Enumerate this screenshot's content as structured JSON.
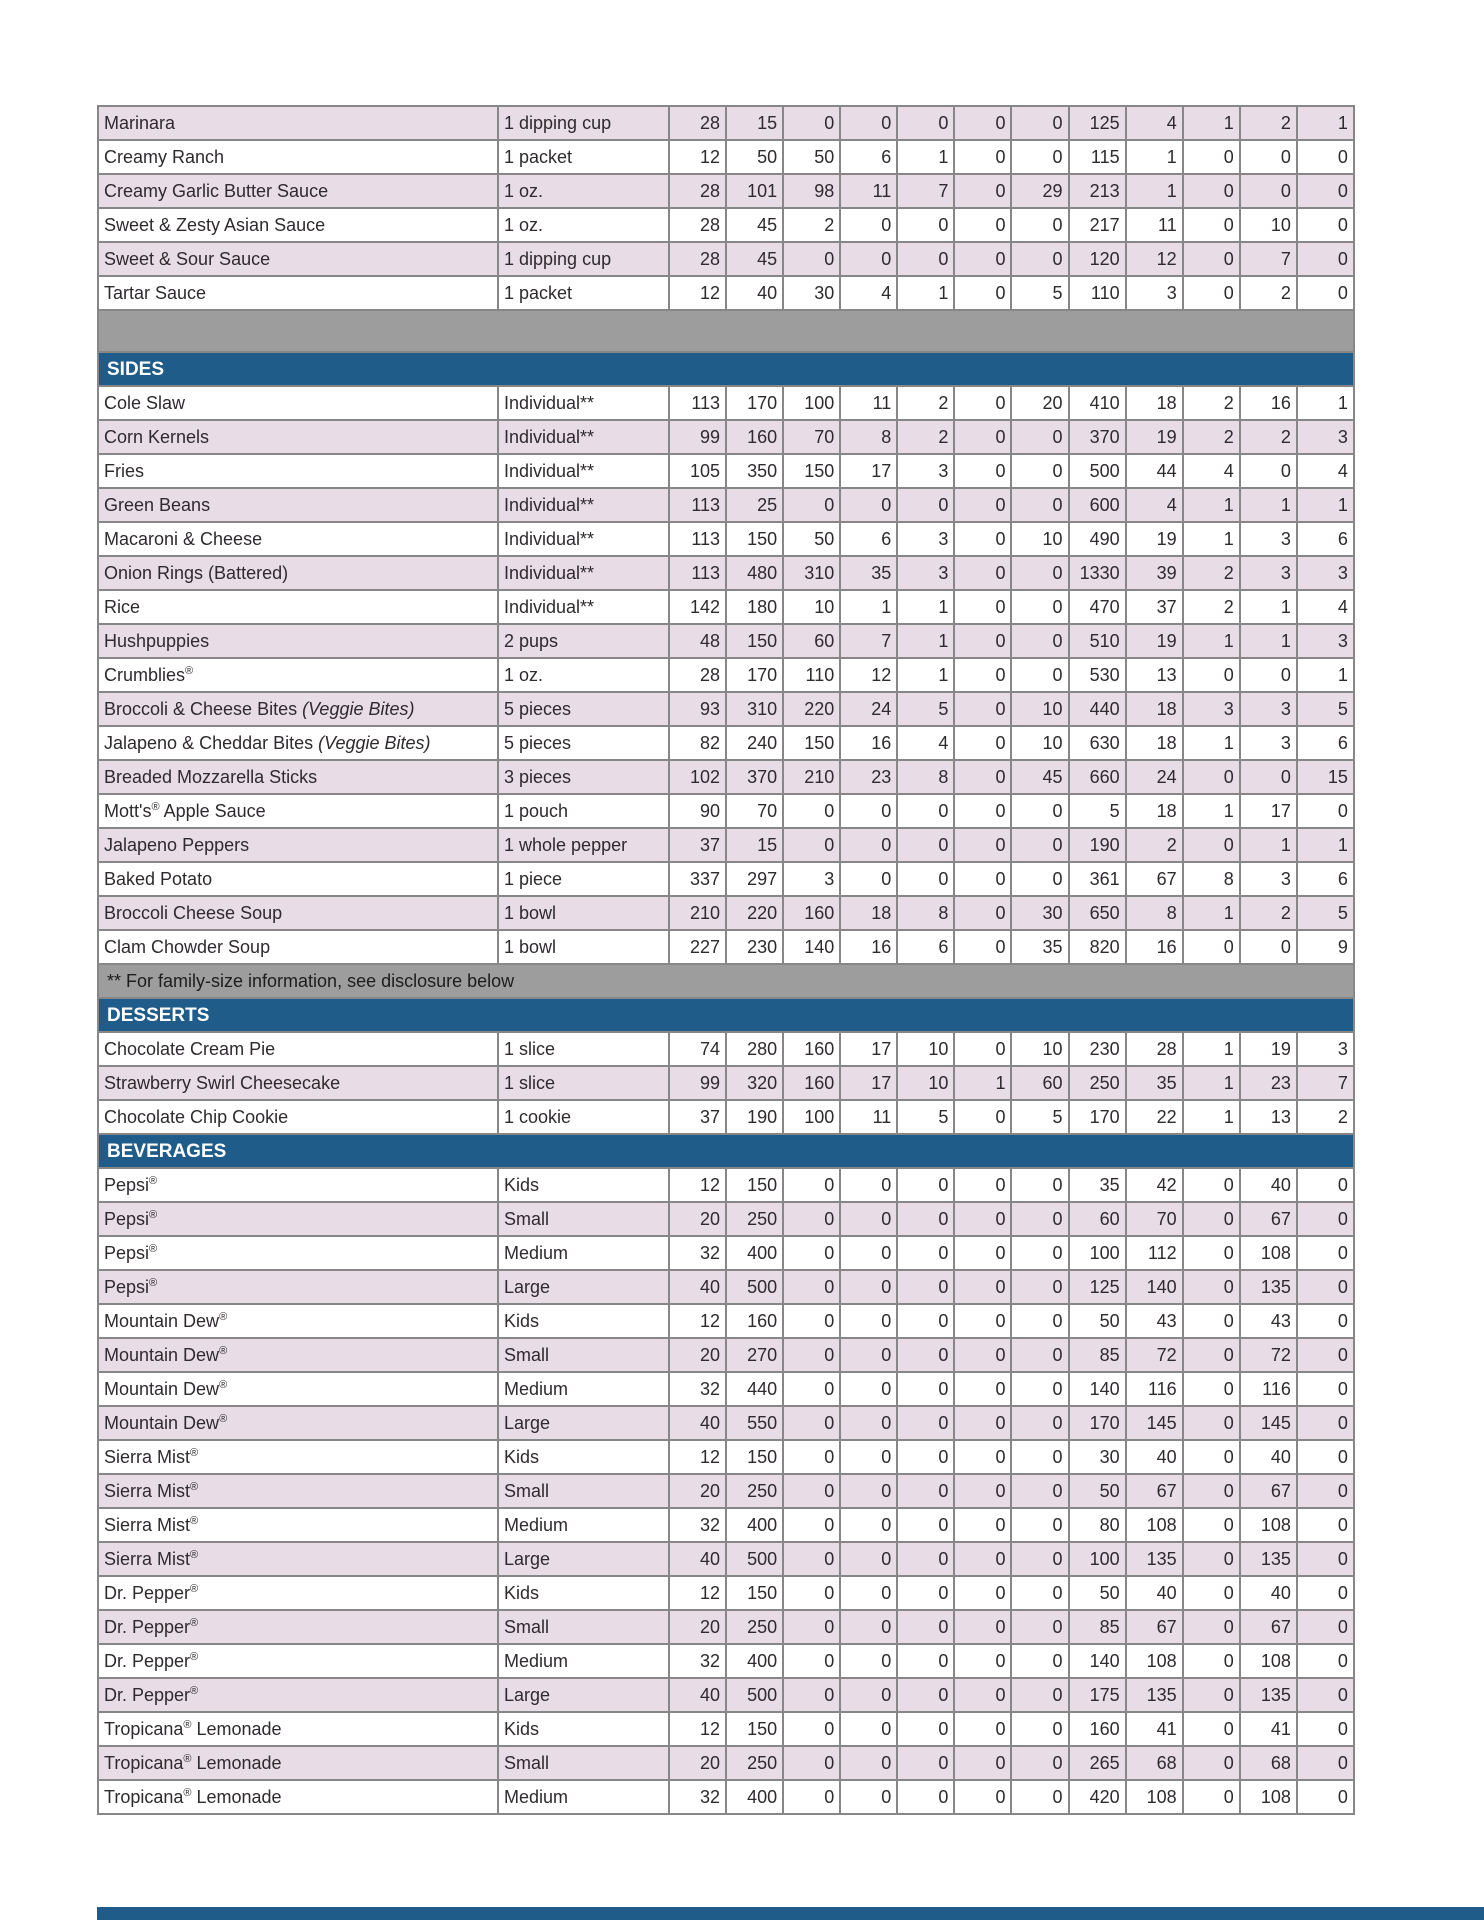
{
  "colors": {
    "section_header_bg": "#1f5c8a",
    "section_header_text": "#ffffff",
    "row_shaded_bg": "#e8dce6",
    "row_plain_bg": "#ffffff",
    "spacer_bg": "#9d9d9d",
    "grid_border": "#878787",
    "body_text": "#2e2a2e"
  },
  "table": {
    "num_value_columns": 12,
    "rows": [
      {
        "kind": "item",
        "shaded": true,
        "name": "Marinara",
        "serving": "1 dipping cup",
        "values": [
          28,
          15,
          0,
          0,
          0,
          0,
          0,
          125,
          4,
          1,
          2,
          1
        ]
      },
      {
        "kind": "item",
        "shaded": false,
        "name": "Creamy Ranch",
        "serving": "1 packet",
        "values": [
          12,
          50,
          50,
          6,
          1,
          0,
          0,
          115,
          1,
          0,
          0,
          0
        ]
      },
      {
        "kind": "item",
        "shaded": true,
        "name": "Creamy Garlic Butter Sauce",
        "serving": "1 oz.",
        "values": [
          28,
          101,
          98,
          11,
          7,
          0,
          29,
          213,
          1,
          0,
          0,
          0
        ]
      },
      {
        "kind": "item",
        "shaded": false,
        "name": "Sweet & Zesty Asian Sauce",
        "serving": "1 oz.",
        "values": [
          28,
          45,
          2,
          0,
          0,
          0,
          0,
          217,
          11,
          0,
          10,
          0
        ]
      },
      {
        "kind": "item",
        "shaded": true,
        "name": "Sweet & Sour Sauce",
        "serving": "1 dipping cup",
        "values": [
          28,
          45,
          0,
          0,
          0,
          0,
          0,
          120,
          12,
          0,
          7,
          0
        ]
      },
      {
        "kind": "item",
        "shaded": false,
        "name": "Tartar Sauce",
        "serving": "1 packet",
        "values": [
          12,
          40,
          30,
          4,
          1,
          0,
          5,
          110,
          3,
          0,
          2,
          0
        ]
      },
      {
        "kind": "spacer"
      },
      {
        "kind": "section",
        "label": "SIDES"
      },
      {
        "kind": "item",
        "shaded": false,
        "name": "Cole Slaw",
        "serving": "Individual**",
        "values": [
          113,
          170,
          100,
          11,
          2,
          0,
          20,
          410,
          18,
          2,
          16,
          1
        ]
      },
      {
        "kind": "item",
        "shaded": true,
        "name": "Corn Kernels",
        "serving": "Individual**",
        "values": [
          99,
          160,
          70,
          8,
          2,
          0,
          0,
          370,
          19,
          2,
          2,
          3
        ]
      },
      {
        "kind": "item",
        "shaded": false,
        "name": "Fries",
        "serving": "Individual**",
        "values": [
          105,
          350,
          150,
          17,
          3,
          0,
          0,
          500,
          44,
          4,
          0,
          4
        ]
      },
      {
        "kind": "item",
        "shaded": true,
        "name": "Green Beans",
        "serving": "Individual**",
        "values": [
          113,
          25,
          0,
          0,
          0,
          0,
          0,
          600,
          4,
          1,
          1,
          1
        ]
      },
      {
        "kind": "item",
        "shaded": false,
        "name": "Macaroni & Cheese",
        "serving": "Individual**",
        "values": [
          113,
          150,
          50,
          6,
          3,
          0,
          10,
          490,
          19,
          1,
          3,
          6
        ]
      },
      {
        "kind": "item",
        "shaded": true,
        "name": "Onion Rings (Battered)",
        "serving": "Individual**",
        "values": [
          113,
          480,
          310,
          35,
          3,
          0,
          0,
          1330,
          39,
          2,
          3,
          3
        ]
      },
      {
        "kind": "item",
        "shaded": false,
        "name": "Rice",
        "serving": "Individual**",
        "values": [
          142,
          180,
          10,
          1,
          1,
          0,
          0,
          470,
          37,
          2,
          1,
          4
        ]
      },
      {
        "kind": "item",
        "shaded": true,
        "name": "Hushpuppies",
        "serving": "2 pups",
        "values": [
          48,
          150,
          60,
          7,
          1,
          0,
          0,
          510,
          19,
          1,
          1,
          3
        ]
      },
      {
        "kind": "item",
        "shaded": false,
        "name": "Crumblies®",
        "serving": "1 oz.",
        "values": [
          28,
          170,
          110,
          12,
          1,
          0,
          0,
          530,
          13,
          0,
          0,
          1
        ]
      },
      {
        "kind": "item",
        "shaded": true,
        "name": "Broccoli & Cheese Bites",
        "name_italic": "(Veggie Bites)",
        "serving": "5 pieces",
        "values": [
          93,
          310,
          220,
          24,
          5,
          0,
          10,
          440,
          18,
          3,
          3,
          5
        ]
      },
      {
        "kind": "item",
        "shaded": false,
        "name": "Jalapeno & Cheddar Bites",
        "name_italic": "(Veggie Bites)",
        "serving": "5 pieces",
        "values": [
          82,
          240,
          150,
          16,
          4,
          0,
          10,
          630,
          18,
          1,
          3,
          6
        ]
      },
      {
        "kind": "item",
        "shaded": true,
        "name": "Breaded Mozzarella Sticks",
        "serving": "3 pieces",
        "values": [
          102,
          370,
          210,
          23,
          8,
          0,
          45,
          660,
          24,
          0,
          0,
          15
        ]
      },
      {
        "kind": "item",
        "shaded": false,
        "name": "Mott's® Apple Sauce",
        "serving": "1 pouch",
        "values": [
          90,
          70,
          0,
          0,
          0,
          0,
          0,
          5,
          18,
          1,
          17,
          0
        ]
      },
      {
        "kind": "item",
        "shaded": true,
        "name": "Jalapeno Peppers",
        "serving": "1 whole pepper",
        "values": [
          37,
          15,
          0,
          0,
          0,
          0,
          0,
          190,
          2,
          0,
          1,
          1
        ]
      },
      {
        "kind": "item",
        "shaded": false,
        "name": "Baked Potato",
        "serving": "1 piece",
        "values": [
          337,
          297,
          3,
          0,
          0,
          0,
          0,
          361,
          67,
          8,
          3,
          6
        ]
      },
      {
        "kind": "item",
        "shaded": true,
        "name": "Broccoli Cheese Soup",
        "serving": "1 bowl",
        "values": [
          210,
          220,
          160,
          18,
          8,
          0,
          30,
          650,
          8,
          1,
          2,
          5
        ]
      },
      {
        "kind": "item",
        "shaded": false,
        "name": "Clam Chowder Soup",
        "serving": "1 bowl",
        "values": [
          227,
          230,
          140,
          16,
          6,
          0,
          35,
          820,
          16,
          0,
          0,
          9
        ]
      },
      {
        "kind": "note",
        "text": "** For family-size information, see disclosure below"
      },
      {
        "kind": "section",
        "label": "DESSERTS"
      },
      {
        "kind": "item",
        "shaded": false,
        "name": "Chocolate Cream Pie",
        "serving": "1 slice",
        "values": [
          74,
          280,
          160,
          17,
          10,
          0,
          10,
          230,
          28,
          1,
          19,
          3
        ]
      },
      {
        "kind": "item",
        "shaded": true,
        "name": "Strawberry Swirl Cheesecake",
        "serving": "1 slice",
        "values": [
          99,
          320,
          160,
          17,
          10,
          1,
          60,
          250,
          35,
          1,
          23,
          7
        ]
      },
      {
        "kind": "item",
        "shaded": false,
        "name": "Chocolate Chip Cookie",
        "serving": "1 cookie",
        "values": [
          37,
          190,
          100,
          11,
          5,
          0,
          5,
          170,
          22,
          1,
          13,
          2
        ]
      },
      {
        "kind": "section",
        "label": "BEVERAGES"
      },
      {
        "kind": "item",
        "shaded": false,
        "name": "Pepsi®",
        "serving": "Kids",
        "values": [
          12,
          150,
          0,
          0,
          0,
          0,
          0,
          35,
          42,
          0,
          40,
          0
        ]
      },
      {
        "kind": "item",
        "shaded": true,
        "name": "Pepsi®",
        "serving": "Small",
        "values": [
          20,
          250,
          0,
          0,
          0,
          0,
          0,
          60,
          70,
          0,
          67,
          0
        ]
      },
      {
        "kind": "item",
        "shaded": false,
        "name": "Pepsi®",
        "serving": "Medium",
        "values": [
          32,
          400,
          0,
          0,
          0,
          0,
          0,
          100,
          112,
          0,
          108,
          0
        ]
      },
      {
        "kind": "item",
        "shaded": true,
        "name": "Pepsi®",
        "serving": "Large",
        "values": [
          40,
          500,
          0,
          0,
          0,
          0,
          0,
          125,
          140,
          0,
          135,
          0
        ]
      },
      {
        "kind": "item",
        "shaded": false,
        "name": "Mountain Dew®",
        "serving": "Kids",
        "values": [
          12,
          160,
          0,
          0,
          0,
          0,
          0,
          50,
          43,
          0,
          43,
          0
        ]
      },
      {
        "kind": "item",
        "shaded": true,
        "name": "Mountain Dew®",
        "serving": "Small",
        "values": [
          20,
          270,
          0,
          0,
          0,
          0,
          0,
          85,
          72,
          0,
          72,
          0
        ]
      },
      {
        "kind": "item",
        "shaded": false,
        "name": "Mountain Dew®",
        "serving": "Medium",
        "values": [
          32,
          440,
          0,
          0,
          0,
          0,
          0,
          140,
          116,
          0,
          116,
          0
        ]
      },
      {
        "kind": "item",
        "shaded": true,
        "name": "Mountain Dew®",
        "serving": "Large",
        "values": [
          40,
          550,
          0,
          0,
          0,
          0,
          0,
          170,
          145,
          0,
          145,
          0
        ]
      },
      {
        "kind": "item",
        "shaded": false,
        "name": "Sierra Mist®",
        "serving": "Kids",
        "values": [
          12,
          150,
          0,
          0,
          0,
          0,
          0,
          30,
          40,
          0,
          40,
          0
        ]
      },
      {
        "kind": "item",
        "shaded": true,
        "name": "Sierra Mist®",
        "serving": "Small",
        "values": [
          20,
          250,
          0,
          0,
          0,
          0,
          0,
          50,
          67,
          0,
          67,
          0
        ]
      },
      {
        "kind": "item",
        "shaded": false,
        "name": "Sierra Mist®",
        "serving": "Medium",
        "values": [
          32,
          400,
          0,
          0,
          0,
          0,
          0,
          80,
          108,
          0,
          108,
          0
        ]
      },
      {
        "kind": "item",
        "shaded": true,
        "name": "Sierra Mist®",
        "serving": "Large",
        "values": [
          40,
          500,
          0,
          0,
          0,
          0,
          0,
          100,
          135,
          0,
          135,
          0
        ]
      },
      {
        "kind": "item",
        "shaded": false,
        "name": "Dr. Pepper®",
        "serving": "Kids",
        "values": [
          12,
          150,
          0,
          0,
          0,
          0,
          0,
          50,
          40,
          0,
          40,
          0
        ]
      },
      {
        "kind": "item",
        "shaded": true,
        "name": "Dr. Pepper®",
        "serving": "Small",
        "values": [
          20,
          250,
          0,
          0,
          0,
          0,
          0,
          85,
          67,
          0,
          67,
          0
        ]
      },
      {
        "kind": "item",
        "shaded": false,
        "name": "Dr. Pepper®",
        "serving": "Medium",
        "values": [
          32,
          400,
          0,
          0,
          0,
          0,
          0,
          140,
          108,
          0,
          108,
          0
        ]
      },
      {
        "kind": "item",
        "shaded": true,
        "name": "Dr. Pepper®",
        "serving": "Large",
        "values": [
          40,
          500,
          0,
          0,
          0,
          0,
          0,
          175,
          135,
          0,
          135,
          0
        ]
      },
      {
        "kind": "item",
        "shaded": false,
        "name": "Tropicana® Lemonade",
        "serving": "Kids",
        "values": [
          12,
          150,
          0,
          0,
          0,
          0,
          0,
          160,
          41,
          0,
          41,
          0
        ]
      },
      {
        "kind": "item",
        "shaded": true,
        "name": "Tropicana® Lemonade",
        "serving": "Small",
        "values": [
          20,
          250,
          0,
          0,
          0,
          0,
          0,
          265,
          68,
          0,
          68,
          0
        ]
      },
      {
        "kind": "item",
        "shaded": false,
        "name": "Tropicana® Lemonade",
        "serving": "Medium",
        "values": [
          32,
          400,
          0,
          0,
          0,
          0,
          0,
          420,
          108,
          0,
          108,
          0
        ]
      }
    ]
  }
}
